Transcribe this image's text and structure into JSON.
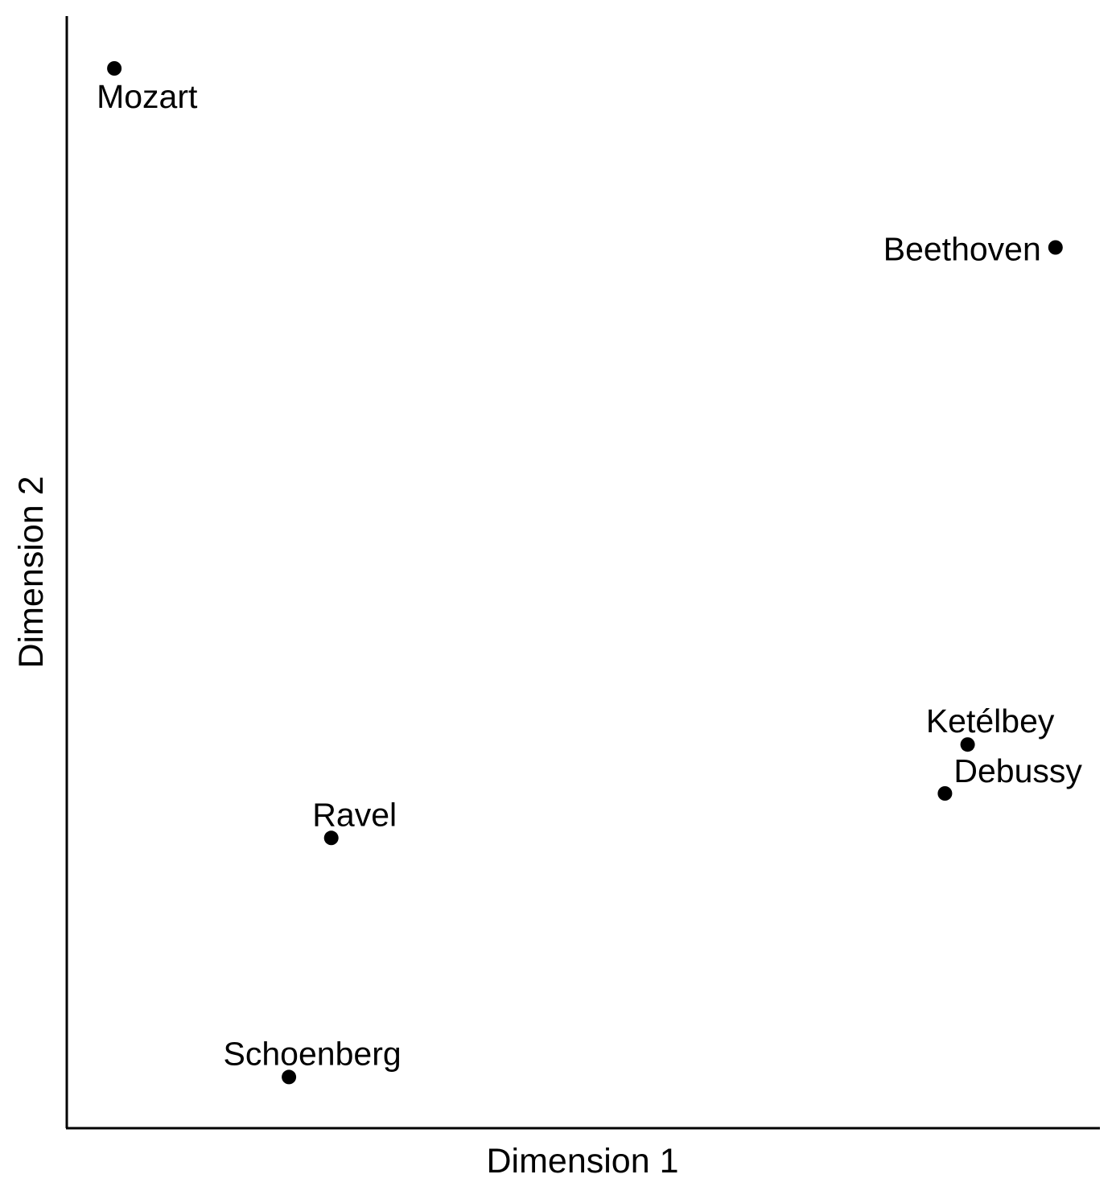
{
  "chart_data": {
    "type": "scatter",
    "title": "",
    "xlabel": "Dimension 1",
    "ylabel": "Dimension 2",
    "xlim": [
      0,
      100
    ],
    "ylim": [
      0,
      100
    ],
    "grid": false,
    "legend": "none",
    "marker_color": "#000000",
    "points": [
      {
        "label": "Mozart",
        "x": 4.6,
        "y": 95.3,
        "label_pos": "below-right"
      },
      {
        "label": "Beethoven",
        "x": 95.7,
        "y": 79.2,
        "label_pos": "left"
      },
      {
        "label": "Ketélbey",
        "x": 87.2,
        "y": 34.5,
        "label_pos": "above"
      },
      {
        "label": "Debussy",
        "x": 85.0,
        "y": 30.1,
        "label_pos": "above-right"
      },
      {
        "label": "Ravel",
        "x": 25.6,
        "y": 26.1,
        "label_pos": "above"
      },
      {
        "label": "Schoenberg",
        "x": 21.5,
        "y": 4.6,
        "label_pos": "above"
      }
    ]
  }
}
